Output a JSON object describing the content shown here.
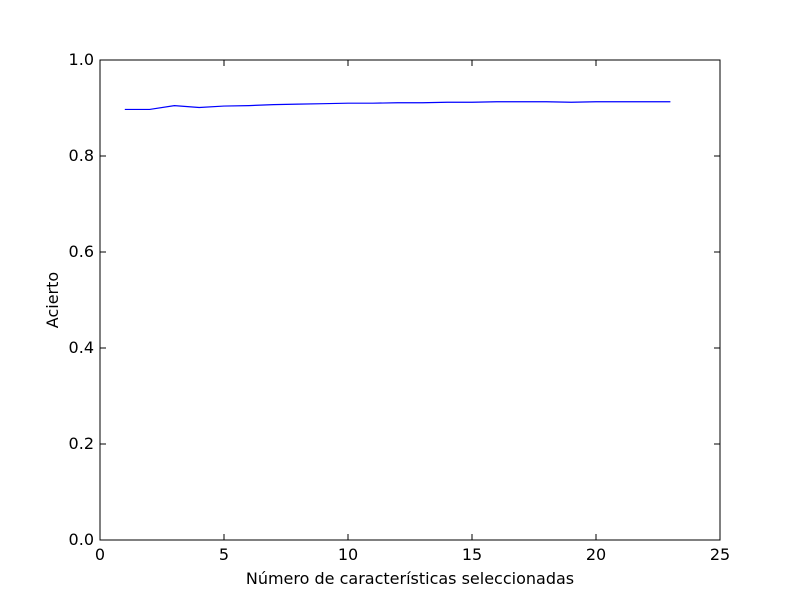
{
  "chart_data": {
    "type": "line",
    "xlabel": "Número de características seleccionadas",
    "ylabel": "Acierto",
    "xlim": [
      0,
      25
    ],
    "ylim": [
      0.0,
      1.0
    ],
    "x_ticks": [
      0,
      5,
      10,
      15,
      20,
      25
    ],
    "y_ticks": [
      0.0,
      0.2,
      0.4,
      0.6,
      0.8,
      1.0
    ],
    "x_tick_labels": [
      "0",
      "5",
      "10",
      "15",
      "20",
      "25"
    ],
    "y_tick_labels": [
      "0.0",
      "0.2",
      "0.4",
      "0.6",
      "0.8",
      "1.0"
    ],
    "grid": false,
    "series": [
      {
        "color": "#0000ff",
        "x": [
          1,
          2,
          3,
          4,
          5,
          6,
          7,
          8,
          9,
          10,
          11,
          12,
          13,
          14,
          15,
          16,
          17,
          18,
          19,
          20,
          21,
          22,
          23
        ],
        "y": [
          0.897,
          0.897,
          0.905,
          0.901,
          0.904,
          0.905,
          0.907,
          0.908,
          0.909,
          0.91,
          0.91,
          0.911,
          0.911,
          0.912,
          0.912,
          0.913,
          0.913,
          0.913,
          0.912,
          0.913,
          0.913,
          0.913,
          0.913
        ]
      }
    ]
  }
}
